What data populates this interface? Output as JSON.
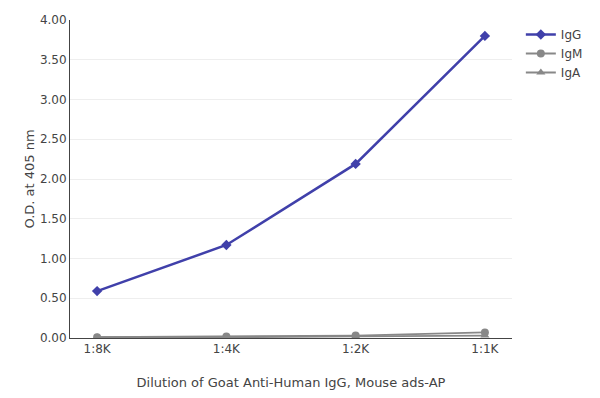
{
  "chart_data": {
    "type": "line",
    "xlabel": "Dilution of Goat Anti-Human IgG, Mouse ads-AP",
    "ylabel": "O.D. at 405 nm",
    "categories": [
      "1:8K",
      "1:4K",
      "1:2K",
      "1:1K"
    ],
    "series": [
      {
        "name": "IgG",
        "color": "#4040aa",
        "marker": "diamond",
        "values": [
          0.59,
          1.17,
          2.19,
          3.8
        ]
      },
      {
        "name": "IgM",
        "color": "#888888",
        "marker": "circle",
        "values": [
          0.01,
          0.02,
          0.03,
          0.07
        ]
      },
      {
        "name": "IgA",
        "color": "#888888",
        "marker": "triangle-up",
        "values": [
          0.01,
          0.01,
          0.02,
          0.03
        ]
      }
    ],
    "ylim": [
      0.0,
      4.0
    ],
    "yticks": [
      {
        "value": 0.0,
        "label": "0.00"
      },
      {
        "value": 0.5,
        "label": "0.50"
      },
      {
        "value": 1.0,
        "label": "1.00"
      },
      {
        "value": 1.5,
        "label": "1.50"
      },
      {
        "value": 2.0,
        "label": "2.00"
      },
      {
        "value": 2.5,
        "label": "2.50"
      },
      {
        "value": 3.0,
        "label": "3.00"
      },
      {
        "value": 3.5,
        "label": "3.50"
      },
      {
        "value": 4.0,
        "label": "4.00"
      }
    ],
    "grid": true,
    "legend": "right"
  }
}
